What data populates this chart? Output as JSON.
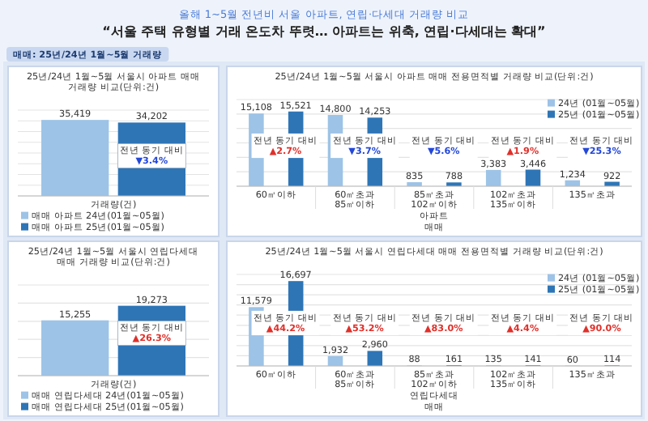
{
  "chart_data": [
    {
      "type": "other",
      "subtitle": "올해 1~5월 전년비 서울 아파트, 연립·다세대 거래량 비교",
      "title": "“서울 주택 유형별 거래 온도차 뚜렷… 아파트는 위축, 연립·다세대는 확대”",
      "annotations": [
        "매매: 25년/24년 1월~5월 거래량"
      ]
    },
    {
      "type": "bar",
      "title": "25년/24년 1월~5월 서울시 아파트 매매 거래량 비교(단위:건)",
      "categories": [
        null
      ],
      "xlabel": "거래량(건)",
      "series": [
        {
          "name": "매매 아파트 24년(01월~05월)",
          "color": "#9dc3e6",
          "values": [
            35419
          ],
          "value_labels": [
            "35,419"
          ]
        },
        {
          "name": "매매 아파트 25년(01월~05월)",
          "color": "#2e75b6",
          "values": [
            34202
          ],
          "value_labels": [
            "34,202"
          ]
        }
      ],
      "ylim": [
        0,
        40000
      ],
      "yticks": [
        {
          "value": 0,
          "label": null
        },
        {
          "value": 5000,
          "label": null
        },
        {
          "value": 10000,
          "label": null
        },
        {
          "value": 15000,
          "label": null
        },
        {
          "value": 20000,
          "label": null
        },
        {
          "value": 25000,
          "label": null
        },
        {
          "value": 30000,
          "label": null
        },
        {
          "value": 35000,
          "label": null
        },
        {
          "value": 40000,
          "label": null
        }
      ],
      "tick_labels": "x",
      "grid": "y",
      "legend": "bottom",
      "annotations": [
        "전년 동기 대비\n▼3.4%"
      ]
    },
    {
      "type": "bar",
      "title": "25년/24년 1월~5월 서울시 아파트 매매 전용면적별 거래량 비교(단위:건)",
      "categories": [
        "60㎡이하",
        "60㎡초과 85㎡이하",
        "85㎡초과 102㎡이하",
        "102㎡초과 135㎡이하",
        "135㎡초과"
      ],
      "series": [
        {
          "name": "24년 (01월~05월)",
          "color": "#9dc3e6",
          "values": [
            15108,
            14800,
            835,
            3383,
            1234
          ],
          "value_labels": [
            "15,108",
            "14,800",
            "835",
            "3,383",
            "1,234"
          ]
        },
        {
          "name": "25년 (01월~05월)",
          "color": "#2e75b6",
          "values": [
            15521,
            14253,
            788,
            3446,
            922
          ],
          "value_labels": [
            "15,521",
            "14,253",
            "788",
            "3,446",
            "922"
          ]
        }
      ],
      "ylim": [
        0,
        18000
      ],
      "yticks": [
        {
          "value": 0,
          "label": null
        },
        {
          "value": 3000,
          "label": null
        },
        {
          "value": 6000,
          "label": null
        },
        {
          "value": 9000,
          "label": null
        },
        {
          "value": 12000,
          "label": null
        },
        {
          "value": 15000,
          "label": null
        },
        {
          "value": 18000,
          "label": null
        }
      ],
      "tick_labels": "x",
      "grid": "y",
      "legend": "top right",
      "xlabel": "아파트",
      "annotations": [
        "전년 동기 대비\n▲2.7%",
        "전년 동기 대비\n▼3.7%",
        "전년 동기 대비\n▼5.6%",
        "전년 동기 대비\n▲1.9%",
        "전년 동기 대비\n▼25.3%",
        "매매"
      ]
    },
    {
      "type": "bar",
      "title": "25년/24년 1월~5월 서울시 연립다세대 매매 거래량 비교(단위:건)",
      "categories": [
        null
      ],
      "xlabel": "거래량(건)",
      "series": [
        {
          "name": "매매 연립다세대 24년(01월~05월)",
          "color": "#9dc3e6",
          "values": [
            15255
          ],
          "value_labels": [
            "15,255"
          ]
        },
        {
          "name": "매매 연립다세대 25년(01월~05월)",
          "color": "#2e75b6",
          "values": [
            19273
          ],
          "value_labels": [
            "19,273"
          ]
        }
      ],
      "ylim": [
        0,
        25000
      ],
      "yticks": [
        {
          "value": 0,
          "label": null
        },
        {
          "value": 5000,
          "label": null
        },
        {
          "value": 10000,
          "label": null
        },
        {
          "value": 15000,
          "label": null
        },
        {
          "value": 20000,
          "label": null
        },
        {
          "value": 25000,
          "label": null
        }
      ],
      "tick_labels": "x",
      "grid": "y",
      "legend": "bottom",
      "annotations": [
        "전년 동기 대비\n▲26.3%"
      ]
    },
    {
      "type": "bar",
      "title": "25년/24년 1월~5월 서울시 연립다세대 매매 전용면적별 거래량 비교(단위:건)",
      "categories": [
        "60㎡이하",
        "60㎡초과 85㎡이하",
        "85㎡초과 102㎡이하",
        "102㎡초과 135㎡이하",
        "135㎡초과"
      ],
      "series": [
        {
          "name": "24년 (01월~05월)",
          "color": "#9dc3e6",
          "values": [
            11579,
            1932,
            88,
            135,
            60
          ],
          "value_labels": [
            "11,579",
            "1,932",
            "88",
            "135",
            "60"
          ]
        },
        {
          "name": "25년 (01월~05월)",
          "color": "#2e75b6",
          "values": [
            16697,
            2960,
            161,
            141,
            114
          ],
          "value_labels": [
            "16,697",
            "2,960",
            "161",
            "141",
            "114"
          ]
        }
      ],
      "ylim": [
        0,
        18000
      ],
      "yticks": [
        {
          "value": 0,
          "label": null
        },
        {
          "value": 2000,
          "label": null
        },
        {
          "value": 4000,
          "label": null
        },
        {
          "value": 6000,
          "label": null
        },
        {
          "value": 8000,
          "label": null
        },
        {
          "value": 10000,
          "label": null
        },
        {
          "value": 12000,
          "label": null
        },
        {
          "value": 14000,
          "label": null
        },
        {
          "value": 16000,
          "label": null
        },
        {
          "value": 18000,
          "label": null
        }
      ],
      "tick_labels": "x",
      "grid": "y",
      "legend": "top right",
      "xlabel": "연립다세대",
      "annotations": [
        "전년 동기 대비\n▲44.2%",
        "전년 동기 대비\n▲53.2%",
        "전년 동기 대비\n▲83.0%",
        "전년 동기 대비\n▲4.4%",
        "전년 동기 대비\n▲90.0%",
        "매매"
      ]
    }
  ]
}
